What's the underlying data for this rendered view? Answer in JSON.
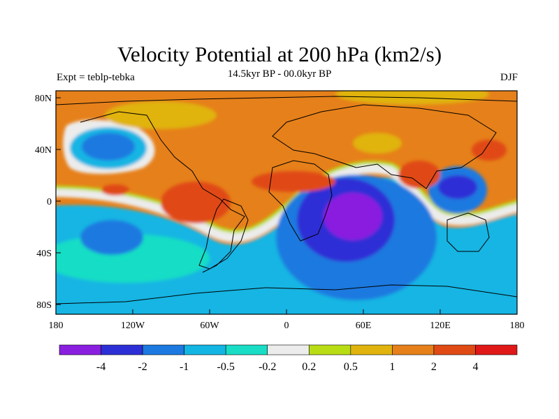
{
  "header": {
    "title": "Velocity Potential at 200 hPa (km2/s)",
    "subtitle": "14.5kyr BP - 00.0kyr BP",
    "left_label": "Expt = teblp-tebka",
    "right_label": "DJF"
  },
  "axes": {
    "x_ticks": [
      "180",
      "120W",
      "60W",
      "0",
      "60E",
      "120E",
      "180"
    ],
    "y_ticks": [
      "80N",
      "40N",
      "0",
      "40S",
      "80S"
    ]
  },
  "colorbar": {
    "colors": [
      "#8a1fe0",
      "#2d2fd6",
      "#1b79e0",
      "#13b5e3",
      "#19ddc5",
      "#ececec",
      "#b9dd14",
      "#e0b30e",
      "#e6801a",
      "#e04a14",
      "#e01818"
    ],
    "labels": [
      "-4",
      "-2",
      "-1",
      "-0.5",
      "-0.2",
      "0.2",
      "0.5",
      "1",
      "2",
      "4"
    ]
  },
  "colors": {
    "background": "#e6801a",
    "coastline": "#000000"
  }
}
